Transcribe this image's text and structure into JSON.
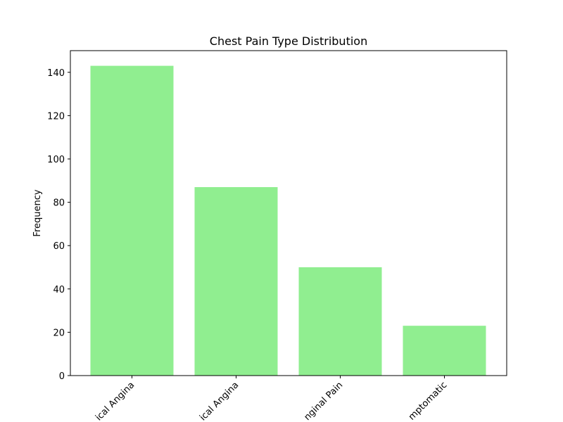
{
  "chart_data": {
    "type": "bar",
    "title": "Chest Pain Type Distribution",
    "xlabel": "",
    "ylabel": "Frequency",
    "categories": [
      "Typical Angina",
      "Atypical Angina",
      "Non-Anginal Pain",
      "Asymptomatic"
    ],
    "visible_tick_labels": [
      "ical Angina",
      "ical Angina",
      "nginal Pain",
      "mptomatic"
    ],
    "values": [
      143,
      87,
      50,
      23
    ],
    "ylim": [
      0,
      150
    ],
    "yticks": [
      0,
      20,
      40,
      60,
      80,
      100,
      120,
      140
    ],
    "bar_color": "#90EE90",
    "grid": false,
    "xtick_rotation": 45
  }
}
